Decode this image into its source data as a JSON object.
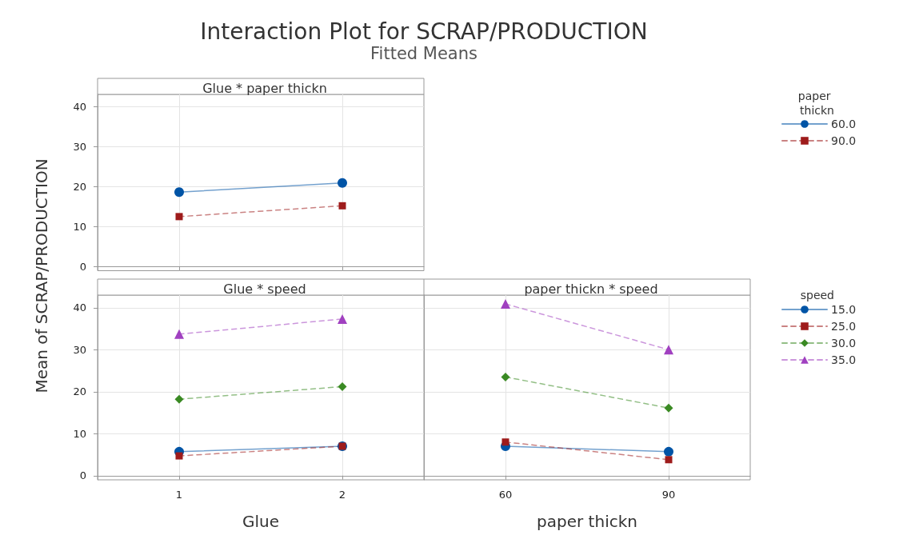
{
  "chart_data": [
    {
      "type": "line",
      "title": "Glue * paper thickn",
      "annotations": [
        "Interaction Plot for SCRAP/PRODUCTION",
        "Fitted Means"
      ],
      "legend_title": "paper thickn",
      "legend": "right",
      "grid": true,
      "tick_labels": "y",
      "xlim": [
        0.5,
        2.5
      ],
      "xticks": [
        1,
        2
      ],
      "ylim": [
        -1,
        43
      ],
      "yticks": [
        0,
        10,
        20,
        30,
        40
      ],
      "series": [
        {
          "name": "60.0",
          "color": "#0054a6",
          "marker": "circle",
          "line_style": "solid",
          "x": [
            1,
            2
          ],
          "values": [
            18.6,
            20.9
          ]
        },
        {
          "name": "90.0",
          "color": "#9e1b1b",
          "marker": "square",
          "line_style": "dashed",
          "x": [
            1,
            2
          ],
          "values": [
            12.5,
            15.2
          ]
        }
      ]
    },
    {
      "type": "line",
      "title": "Glue * speed",
      "xlabel": "Glue",
      "ylabel": "Mean of SCRAP/PRODUCTION",
      "grid": true,
      "xlim": [
        0.5,
        2.5
      ],
      "xticks": [
        1,
        2
      ],
      "ylim": [
        -1,
        43
      ],
      "yticks": [
        0,
        10,
        20,
        30,
        40
      ],
      "series": [
        {
          "color": "#0054a6",
          "marker": "circle",
          "line_style": "solid",
          "x": [
            1,
            2
          ],
          "values": [
            5.7,
            7.0
          ]
        },
        {
          "color": "#9e1b1b",
          "marker": "square",
          "line_style": "dashed",
          "x": [
            1,
            2
          ],
          "values": [
            4.7,
            7.0
          ]
        },
        {
          "color": "#3a8a23",
          "marker": "diamond",
          "line_style": "dashed",
          "x": [
            1,
            2
          ],
          "values": [
            18.2,
            21.2
          ]
        },
        {
          "color": "#a040c0",
          "marker": "triangle",
          "line_style": "dashed",
          "x": [
            1,
            2
          ],
          "values": [
            33.7,
            37.3
          ]
        }
      ]
    },
    {
      "type": "line",
      "title": "paper thickn * speed",
      "xlabel": "paper thickn",
      "legend_title": "speed",
      "legend": "right",
      "grid": true,
      "tick_labels": "x",
      "xlim": [
        45,
        105
      ],
      "xticks": [
        60,
        90
      ],
      "ylim": [
        -1,
        43
      ],
      "yticks": [
        0,
        10,
        20,
        30,
        40
      ],
      "series": [
        {
          "name": "15.0",
          "color": "#0054a6",
          "marker": "circle",
          "line_style": "solid",
          "x": [
            60,
            90
          ],
          "values": [
            7.0,
            5.7
          ]
        },
        {
          "name": "25.0",
          "color": "#9e1b1b",
          "marker": "square",
          "line_style": "dashed",
          "x": [
            60,
            90
          ],
          "values": [
            8.0,
            3.8
          ]
        },
        {
          "name": "30.0",
          "color": "#3a8a23",
          "marker": "diamond",
          "line_style": "dashed",
          "x": [
            60,
            90
          ],
          "values": [
            23.5,
            16.1
          ]
        },
        {
          "name": "35.0",
          "color": "#a040c0",
          "marker": "triangle",
          "line_style": "dashed",
          "x": [
            60,
            90
          ],
          "values": [
            40.9,
            30.0
          ]
        }
      ]
    }
  ]
}
